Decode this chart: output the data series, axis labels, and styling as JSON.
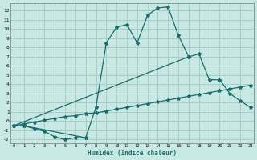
{
  "xlabel": "Humidex (Indice chaleur)",
  "xlim": [
    -0.3,
    23.3
  ],
  "ylim": [
    -2.4,
    12.8
  ],
  "xticks": [
    0,
    1,
    2,
    3,
    4,
    5,
    6,
    7,
    8,
    9,
    10,
    11,
    12,
    13,
    14,
    15,
    16,
    17,
    18,
    19,
    20,
    21,
    22,
    23
  ],
  "yticks": [
    -2,
    -1,
    0,
    1,
    2,
    3,
    4,
    5,
    6,
    7,
    8,
    9,
    10,
    11,
    12
  ],
  "bg_color": "#c8e8e4",
  "grid_color": "#a8ccc8",
  "line_color": "#1a6b6b",
  "line1_x": [
    0,
    1,
    2,
    3,
    4,
    5,
    6,
    7
  ],
  "line1_y": [
    -0.5,
    -0.5,
    -0.8,
    -1.1,
    -1.7,
    -2.0,
    -1.8,
    -1.8
  ],
  "line2_x": [
    0,
    1,
    7,
    8,
    9,
    10,
    11,
    12,
    13,
    14,
    15,
    16,
    17
  ],
  "line2_y": [
    -0.5,
    -0.5,
    -1.8,
    1.5,
    8.5,
    10.2,
    10.5,
    8.5,
    11.5,
    12.3,
    12.4,
    9.3,
    7.0
  ],
  "line3_x": [
    0,
    17,
    18,
    19,
    20,
    21,
    22,
    23
  ],
  "line3_y": [
    -0.5,
    7.0,
    7.3,
    4.5,
    4.5,
    3.0,
    2.2,
    1.5
  ],
  "line4_x": [
    0,
    1,
    2,
    3,
    4,
    5,
    6,
    7,
    8,
    9,
    10,
    11,
    12,
    13,
    14,
    15,
    16,
    17,
    18,
    19,
    20,
    21,
    22,
    23
  ],
  "line4_y": [
    -0.5,
    -0.3,
    -0.1,
    0.1,
    0.3,
    0.5,
    0.6,
    0.8,
    0.9,
    1.1,
    1.3,
    1.5,
    1.7,
    1.9,
    2.1,
    2.3,
    2.5,
    2.7,
    2.9,
    3.1,
    3.3,
    3.5,
    3.7,
    3.9
  ]
}
